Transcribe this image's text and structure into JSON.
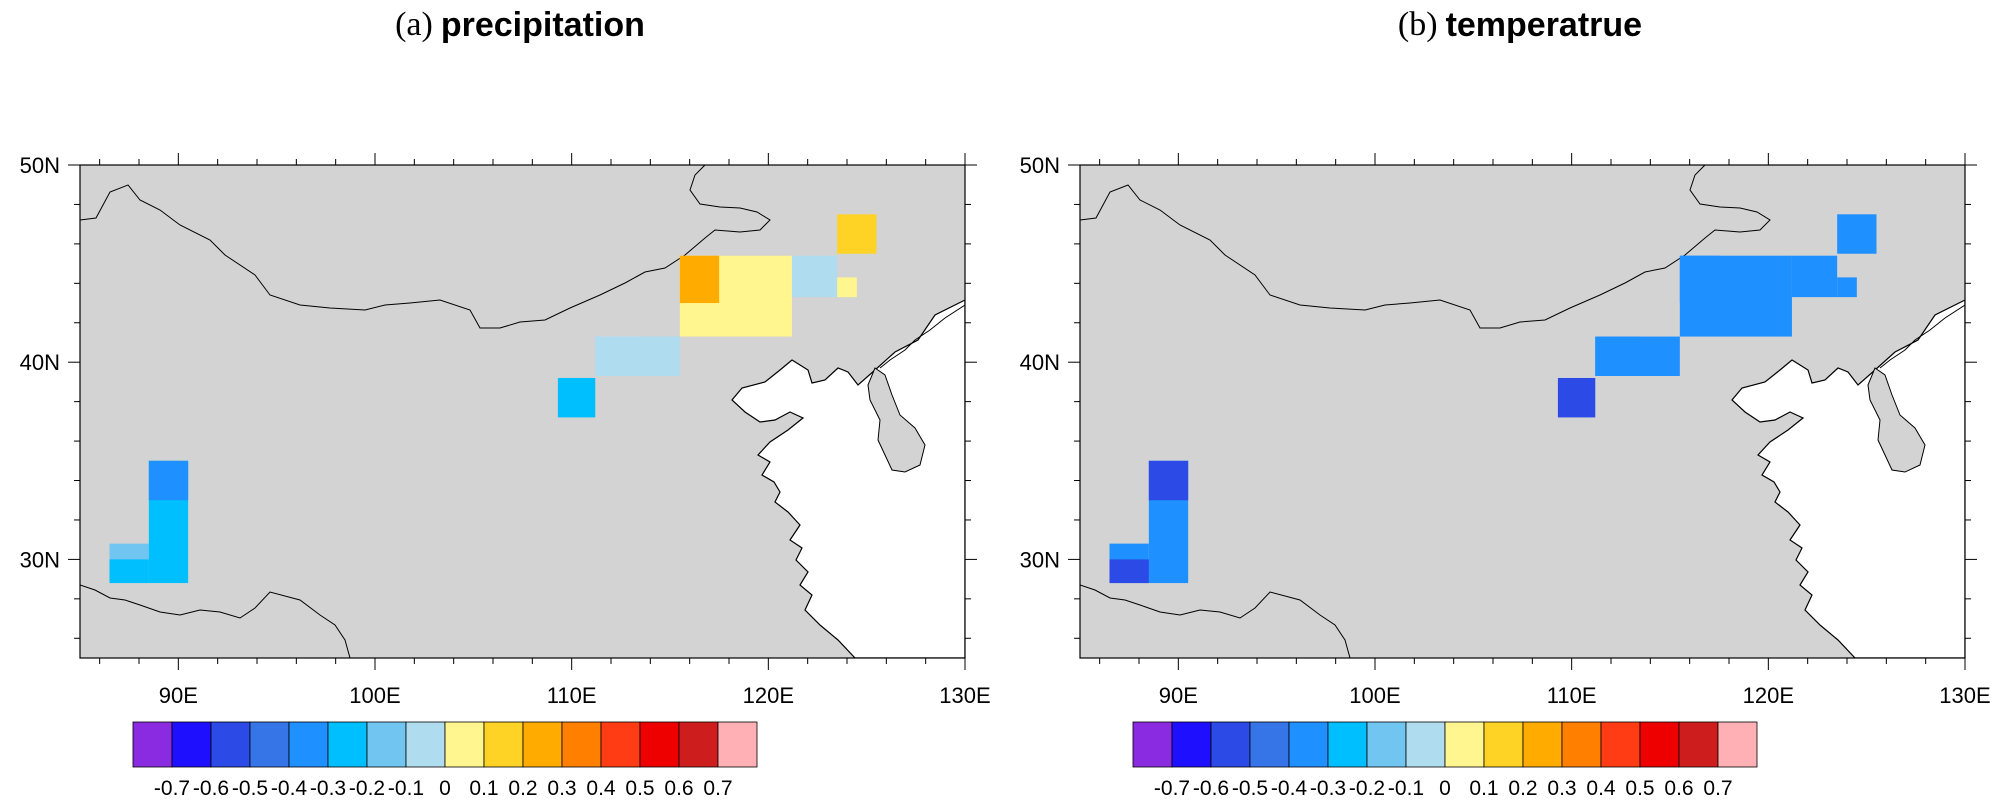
{
  "panels": [
    {
      "label": "(a)",
      "title": "precipitation",
      "cell_values": [
        -0.2,
        -0.3,
        0.1,
        0.0,
        -0.1,
        0.0,
        -0.1,
        -0.3,
        -0.4,
        -0.3,
        -0.1,
        0.2
      ]
    },
    {
      "label": "(b)",
      "title": "temperatrue",
      "cell_values": [
        -0.4,
        -0.4,
        -0.4,
        -0.4,
        -0.4,
        -0.4,
        -0.4,
        -0.6,
        -0.6,
        -0.6,
        -0.4,
        -0.4
      ]
    }
  ],
  "map": {
    "lon_ticks": [
      "90E",
      "100E",
      "110E",
      "120E",
      "130E"
    ],
    "lat_ticks": [
      "50N",
      "40N",
      "30N"
    ],
    "land_color": "#d3d3d3",
    "sea_color": "#ffffff"
  },
  "colorbar": {
    "labels": [
      "-0.7",
      "-0.6",
      "-0.5",
      "-0.4",
      "-0.3",
      "-0.2",
      "-0.1",
      "0",
      "0.1",
      "0.2",
      "0.3",
      "0.4",
      "0.5",
      "0.6",
      "0.7"
    ],
    "colors": [
      "#8a2be2",
      "#1e0fff",
      "#2b4ae6",
      "#3575e8",
      "#1e90ff",
      "#00bfff",
      "#70c6f0",
      "#b0dcf0",
      "#fff68f",
      "#ffd226",
      "#ffab00",
      "#ff7f00",
      "#ff3c14",
      "#ef0000",
      "#cd1d1d",
      "#ffb0b5"
    ]
  }
}
